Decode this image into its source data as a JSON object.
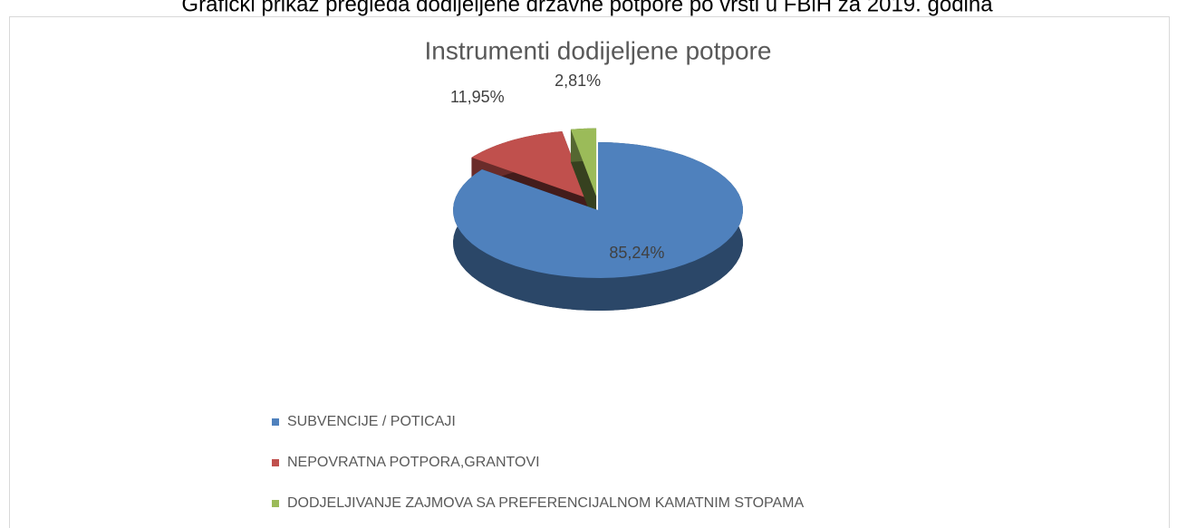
{
  "caption": "Grafički prikaz pregleda dodijeljene državne potpore po vrsti u FBiH za 2019. godina",
  "chart_data": {
    "type": "pie",
    "title": "Instrumenti dodijeljene potpore",
    "categories": [
      "SUBVENCIJE / POTICAJI",
      "NEPOVRATNA POTPORA,GRANTOVI",
      "DODJELJIVANJE ZAJMOVA SA PREFERENCIJALNOM KAMATNIM STOPAMA"
    ],
    "values": [
      85.24,
      11.95,
      2.81
    ],
    "value_labels": [
      "85,24%",
      "11,95%",
      "2,81%"
    ],
    "colors": [
      "#4f81bd",
      "#c0504d",
      "#9bbb59"
    ],
    "legend": "bottom"
  }
}
